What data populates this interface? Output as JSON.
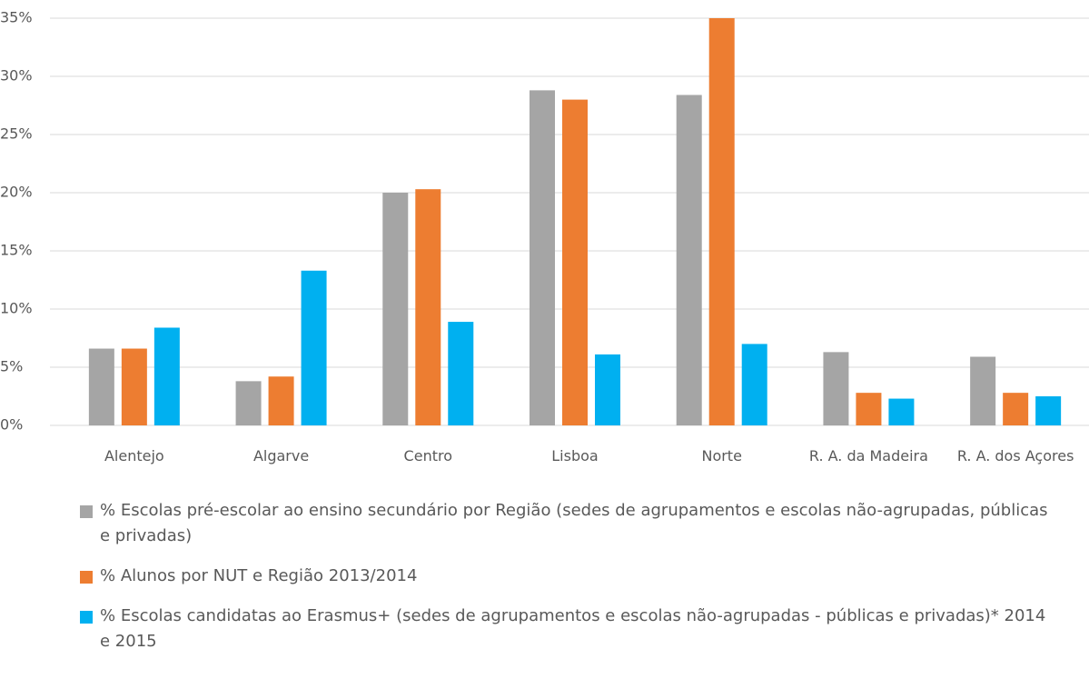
{
  "chart_data": {
    "type": "bar",
    "categories": [
      "Alentejo",
      "Algarve",
      "Centro",
      "Lisboa",
      "Norte",
      "R. A. da Madeira",
      "R. A. dos Açores"
    ],
    "series": [
      {
        "name": "%  Escolas pré-escolar ao ensino secundário por Região (sedes de agrupamentos e escolas não-agrupadas, públicas e privadas)",
        "color": "#a5a5a5",
        "values": [
          6.6,
          3.8,
          20.0,
          28.8,
          28.4,
          6.3,
          5.9
        ]
      },
      {
        "name": "% Alunos por NUT e Região 2013/2014",
        "color": "#ed7d31",
        "values": [
          6.6,
          4.2,
          20.3,
          28.0,
          35.0,
          2.8,
          2.8
        ]
      },
      {
        "name": "% Escolas candidatas ao Erasmus+ (sedes de agrupamentos e escolas não-agrupadas - públicas e privadas)* 2014 e 2015",
        "color": "#00b0f0",
        "values": [
          8.4,
          13.3,
          8.9,
          6.1,
          7.0,
          2.3,
          2.5
        ]
      }
    ],
    "ylim": [
      0,
      35
    ],
    "yticks": [
      {
        "value": 0,
        "label": "0%"
      },
      {
        "value": 5,
        "label": "5%"
      },
      {
        "value": 10,
        "label": "10%"
      },
      {
        "value": 15,
        "label": "15%"
      },
      {
        "value": 20,
        "label": "20%"
      },
      {
        "value": 25,
        "label": "25%"
      },
      {
        "value": 30,
        "label": "30%"
      },
      {
        "value": 35,
        "label": "35%"
      }
    ],
    "grid": true
  }
}
